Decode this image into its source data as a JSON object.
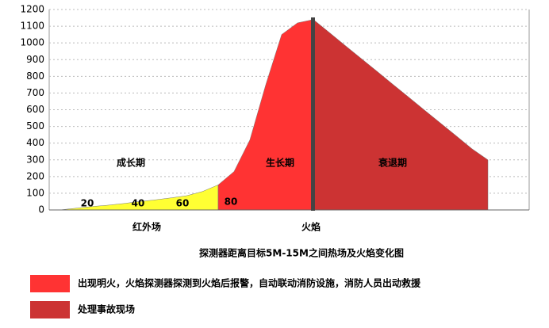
{
  "chart_data": {
    "type": "area",
    "title": "探测器距离目标5M-15M之间热场及火焰变化图",
    "categories": [
      null,
      null,
      null,
      null,
      null,
      null,
      null,
      null,
      null,
      null,
      null,
      null,
      null,
      null,
      null,
      null,
      null,
      null,
      null,
      null,
      null,
      null,
      null,
      null,
      null,
      null,
      null,
      null
    ],
    "series": [
      {
        "color": "#ffff33",
        "values": [
          0,
          10,
          20,
          28,
          38,
          50,
          60,
          72,
          85,
          110,
          150,
          null,
          null,
          null,
          null,
          null,
          null,
          null,
          null,
          null,
          null,
          null,
          null,
          null,
          null,
          null,
          null,
          null
        ]
      },
      {
        "name": "出现明火，火焰探测器探测到火焰后报警，自动联动消防设施，消防人员出动救援",
        "color": "#ff3333",
        "values": [
          null,
          null,
          null,
          null,
          null,
          null,
          null,
          null,
          null,
          null,
          150,
          230,
          420,
          750,
          1050,
          1120,
          1140,
          null,
          null,
          null,
          null,
          null,
          null,
          null,
          null,
          null,
          null,
          null
        ]
      },
      {
        "name": "处理事故现场",
        "color": "#cc3333",
        "values": [
          null,
          null,
          null,
          null,
          null,
          null,
          null,
          null,
          null,
          null,
          null,
          null,
          null,
          null,
          null,
          null,
          1140,
          1063,
          985,
          908,
          831,
          753,
          676,
          598,
          521,
          444,
          366,
          300
        ]
      }
    ],
    "point_labels": [
      20,
      40,
      60,
      80
    ],
    "phase_labels": [
      "成长期",
      "生长期",
      "衰退期"
    ],
    "zone_labels": [
      "红外场",
      "火焰"
    ],
    "ylim": [
      0,
      1200
    ],
    "yticks": [
      0,
      100,
      200,
      300,
      400,
      500,
      600,
      700,
      800,
      900,
      1000,
      1100,
      1200
    ],
    "grid": true
  }
}
